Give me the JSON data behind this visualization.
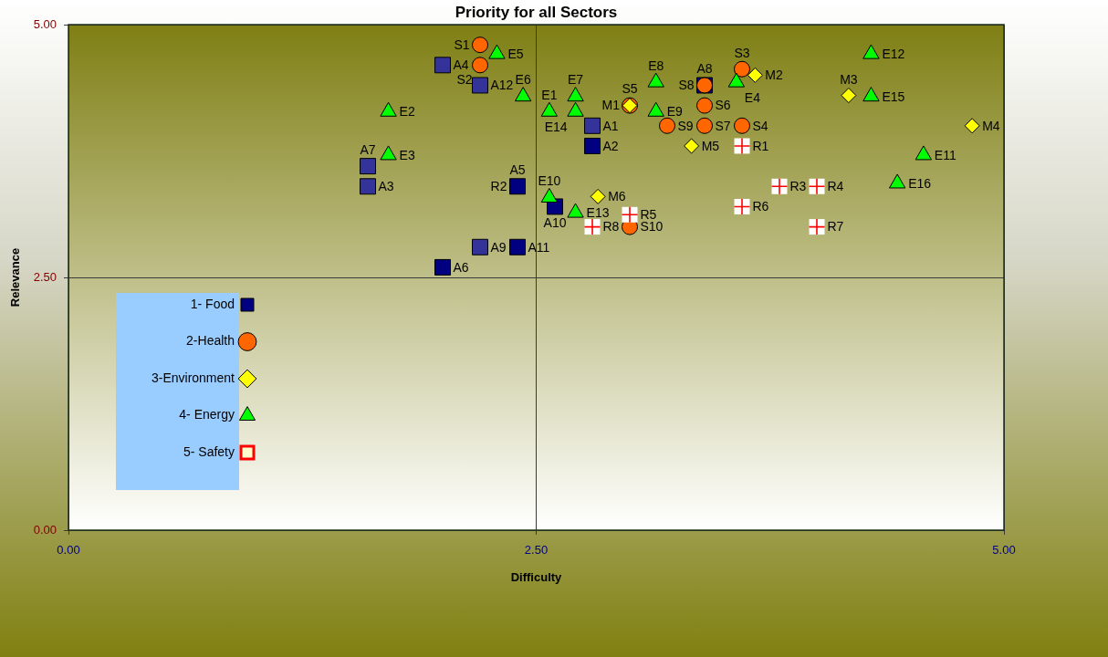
{
  "chart_data": {
    "type": "scatter",
    "title": "Priority for all Sectors",
    "xlabel": "Difficulty",
    "ylabel": "Relevance",
    "xlim": [
      0,
      5
    ],
    "ylim": [
      0,
      5
    ],
    "xticks": [
      {
        "value": 0,
        "label": "0.00"
      },
      {
        "value": 2.5,
        "label": "2.50"
      },
      {
        "value": 5,
        "label": "5.00"
      }
    ],
    "yticks": [
      {
        "value": 0,
        "label": "0.00"
      },
      {
        "value": 2.5,
        "label": "2.50"
      },
      {
        "value": 5,
        "label": "5.00"
      }
    ],
    "grid": true,
    "legend": "bottom left",
    "series": [
      {
        "name": "1- Food",
        "color": "#000080",
        "marker": "square",
        "x": [
          2.8,
          2.8,
          1.6,
          2.0,
          2.4,
          2.0,
          1.6,
          3.4,
          2.2,
          2.6,
          2.4,
          2.2
        ],
        "values": [
          4.0,
          3.8,
          3.4,
          4.6,
          3.4,
          2.6,
          3.6,
          4.4,
          2.8,
          3.2,
          2.8,
          4.4
        ],
        "colors": [
          "#333399",
          "#000080",
          "#333399",
          "#333399",
          "#000080",
          "#000080",
          "#333399",
          "#000080",
          "#333399",
          "#000080",
          "#000080",
          "#333399"
        ],
        "value_labels": [
          "A1",
          "A2",
          "A3",
          "A4",
          "A5",
          "A6",
          "A7",
          "A8",
          "A9",
          "A10",
          "A11",
          "A12"
        ]
      },
      {
        "name": "2-Health",
        "color": "#ff6600",
        "marker": "circle",
        "x": [
          2.2,
          2.2,
          3.6,
          3.6,
          3.0,
          3.4,
          3.4,
          3.4,
          3.2,
          3.0
        ],
        "values": [
          4.8,
          4.6,
          4.56,
          4.0,
          4.2,
          4.2,
          4.0,
          4.4,
          4.0,
          3.0
        ],
        "value_labels": [
          "S1",
          "S2",
          "S3",
          "S4",
          "S5",
          "S6",
          "S7",
          "S8",
          "S9",
          "S10"
        ]
      },
      {
        "name": "3-Environment",
        "color": "#ffff00",
        "marker": "diamond",
        "x": [
          3.0,
          3.67,
          4.17,
          4.83,
          3.33,
          2.83
        ],
        "values": [
          4.2,
          4.5,
          4.3,
          4.0,
          3.8,
          3.3
        ],
        "value_labels": [
          "M1",
          "M2",
          "M3",
          "M4",
          "M5",
          "M6"
        ]
      },
      {
        "name": "4- Energy",
        "color": "#00ff00",
        "marker": "triangle",
        "x": [
          2.57,
          1.71,
          1.71,
          3.57,
          2.29,
          2.43,
          2.71,
          3.14,
          3.14,
          2.57,
          4.57,
          4.29,
          2.71,
          2.71,
          4.29,
          4.43
        ],
        "values": [
          4.14,
          4.14,
          3.71,
          4.43,
          4.71,
          4.29,
          4.29,
          4.43,
          4.14,
          3.29,
          3.71,
          4.71,
          3.14,
          4.14,
          4.29,
          3.43
        ],
        "value_labels": [
          "E1",
          "E2",
          "E3",
          "E4",
          "E5",
          "E6",
          "E7",
          "E8",
          "E9",
          "E10",
          "E11",
          "E12",
          "E13",
          "E14",
          "E15",
          "E16"
        ]
      },
      {
        "name": "5- Safety",
        "color": "#ff0000",
        "marker": "cross",
        "x": [
          3.6,
          3.8,
          4.0,
          3.0,
          3.6,
          4.0,
          2.8
        ],
        "values": [
          3.8,
          3.4,
          3.4,
          3.12,
          3.2,
          3.0,
          3.0
        ],
        "value_labels": [
          "R1",
          "R3",
          "R4",
          "R5",
          "R6",
          "R7",
          "R8"
        ]
      }
    ],
    "annotations": [
      {
        "text": "R2",
        "x": 2.4,
        "y": 3.4
      }
    ]
  }
}
